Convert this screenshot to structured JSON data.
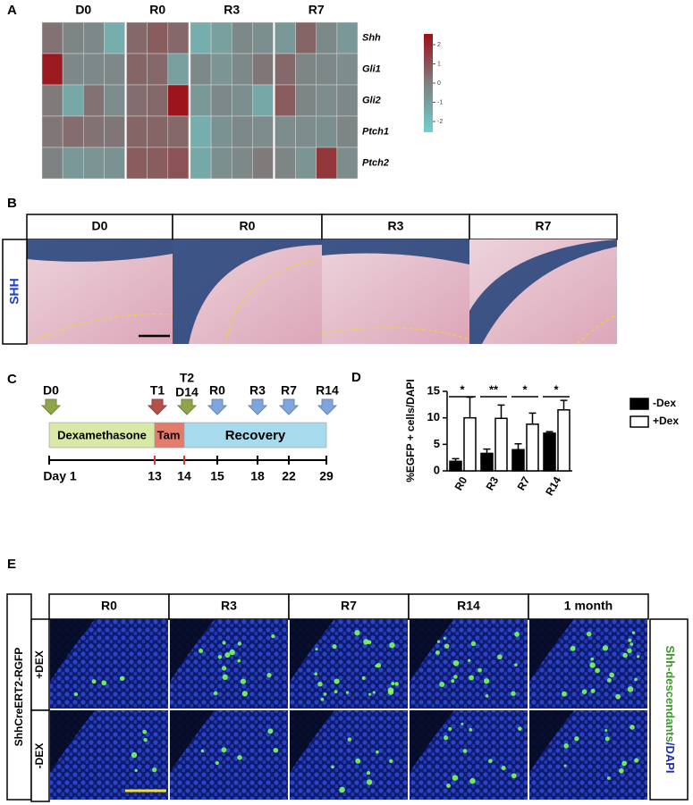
{
  "panels": {
    "a": "A",
    "b": "B",
    "c": "C",
    "d": "D",
    "e": "E"
  },
  "heatmap": {
    "genes": [
      "Shh",
      "Gli1",
      "Gli2",
      "Ptch1",
      "Ptch2"
    ],
    "groups": [
      {
        "name": "D0",
        "values": [
          [
            0.3,
            -0.2,
            -0.3,
            -1.5
          ],
          [
            2.3,
            -0.3,
            -0.3,
            -0.3
          ],
          [
            0.1,
            -1.3,
            0.3,
            -0.4
          ],
          [
            0.2,
            0.4,
            0.3,
            0.2
          ],
          [
            -0.1,
            -0.8,
            -0.7,
            -0.6
          ]
        ]
      },
      {
        "name": "R0",
        "values": [
          [
            0.5,
            0.8,
            0.5
          ],
          [
            0.6,
            0.5,
            -1
          ],
          [
            0.4,
            0.5,
            2.4
          ],
          [
            0.6,
            0.6,
            0.5
          ],
          [
            0.8,
            0.8,
            1.0
          ]
        ]
      },
      {
        "name": "R3",
        "values": [
          [
            -1.5,
            -1,
            -0.3,
            -0.5
          ],
          [
            -0.3,
            -0.7,
            -0.3,
            0.2
          ],
          [
            -0.8,
            -0.3,
            -0.5,
            -1.3
          ],
          [
            -1.5,
            -0.6,
            -0.3,
            -0.4
          ],
          [
            -1.3,
            -0.5,
            -0.3,
            0.1
          ]
        ]
      },
      {
        "name": "R7",
        "values": [
          [
            -0.8,
            0.6,
            -0.3,
            -0.8
          ],
          [
            0.5,
            -0.2,
            -0.3,
            -0.4
          ],
          [
            0.8,
            -0.2,
            -0.4,
            -0.3
          ],
          [
            -0.4,
            -0.4,
            -0.5,
            -0.2
          ],
          [
            -0.2,
            -0.7,
            1.6,
            -0.4
          ]
        ]
      }
    ],
    "clim": [
      -2.56,
      2.56
    ],
    "ticks": [
      2,
      1,
      0,
      -1,
      -2
    ]
  },
  "staining": {
    "columns": [
      "D0",
      "R0",
      "R3",
      "R7"
    ],
    "row_label": "SHH"
  },
  "timeline": {
    "markers": [
      "D0",
      "T1",
      "T2",
      "D14",
      "R0",
      "R3",
      "R7",
      "R14"
    ],
    "phases": [
      "Dexamethasone",
      "Tam",
      "Recovery"
    ],
    "days": [
      "Day 1",
      "13",
      "14",
      "15",
      "18",
      "22",
      "29"
    ]
  },
  "chart_data": {
    "type": "bar",
    "y_label": "%EGFP + cells/DAPI",
    "categories": [
      "R0",
      "R3",
      "R7",
      "R14"
    ],
    "series": [
      {
        "name": "-Dex",
        "color": "#000000",
        "values": [
          1.8,
          3.3,
          4.0,
          7.1
        ],
        "errors": [
          0.5,
          0.8,
          1.1,
          0.3
        ]
      },
      {
        "name": "+Dex",
        "color": "#ffffff",
        "values": [
          10.0,
          9.9,
          8.8,
          11.5
        ],
        "errors": [
          3.9,
          2.5,
          2.1,
          1.8
        ]
      }
    ],
    "significance": [
      "*",
      "**",
      "*",
      "*"
    ],
    "ylim": [
      0,
      15
    ],
    "yticks": [
      0,
      5,
      10,
      15
    ]
  },
  "lineage": {
    "columns": [
      "R0",
      "R3",
      "R7",
      "R14",
      "1 month"
    ],
    "rows": [
      "+DEX",
      "-DEX"
    ],
    "left_label": "ShhCreERT2-RGFP",
    "right_label": [
      "Shh-descendants",
      "/DAPI"
    ]
  }
}
